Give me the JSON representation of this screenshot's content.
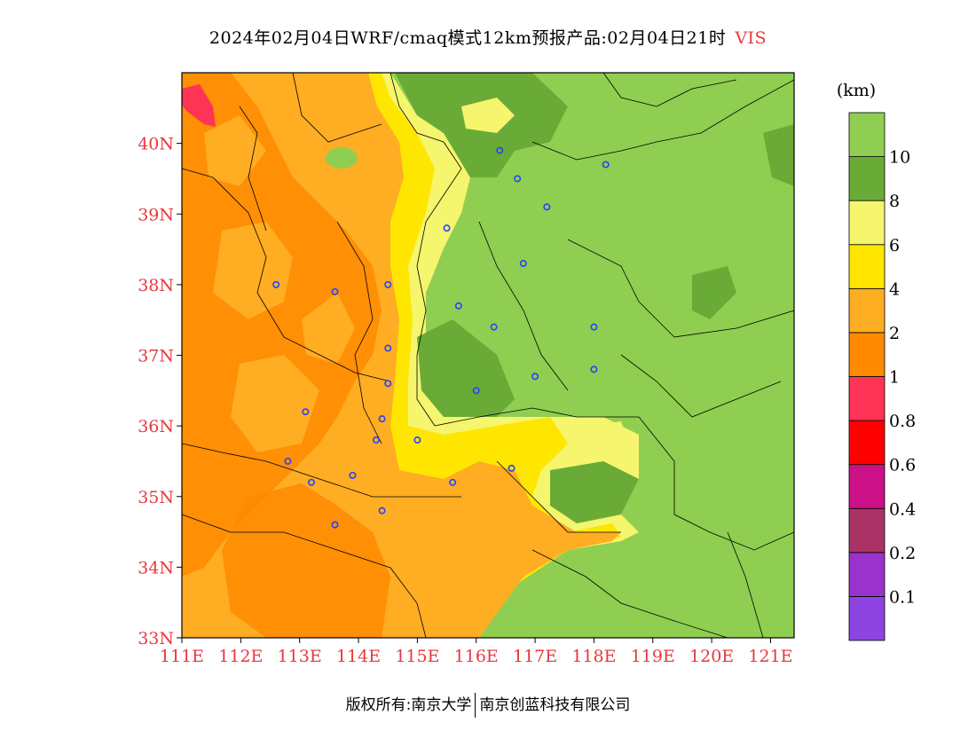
{
  "title": {
    "main": "2024年02月04日WRF/cmaq模式12km预报产品:02月04日21时",
    "variable": "VIS"
  },
  "map": {
    "lat_labels": [
      "40N",
      "39N",
      "38N",
      "37N",
      "36N",
      "35N",
      "34N",
      "33N"
    ],
    "lon_labels": [
      "111E",
      "112E",
      "113E",
      "114E",
      "115E",
      "116E",
      "117E",
      "118E",
      "119E",
      "120E",
      "121E"
    ],
    "extent": {
      "lon_min": 111,
      "lon_max": 121.4,
      "lat_min": 33,
      "lat_max": 41
    },
    "stations": [
      [
        116.4,
        39.9
      ],
      [
        116.7,
        39.5
      ],
      [
        118.2,
        39.7
      ],
      [
        117.2,
        39.1
      ],
      [
        115.5,
        38.8
      ],
      [
        116.8,
        38.3
      ],
      [
        112.6,
        38.0
      ],
      [
        113.6,
        37.9
      ],
      [
        114.5,
        38.0
      ],
      [
        115.7,
        37.7
      ],
      [
        116.3,
        37.4
      ],
      [
        118.0,
        37.4
      ],
      [
        114.5,
        37.1
      ],
      [
        114.5,
        36.6
      ],
      [
        116.0,
        36.5
      ],
      [
        117.0,
        36.7
      ],
      [
        118.0,
        36.8
      ],
      [
        113.1,
        36.2
      ],
      [
        114.4,
        36.1
      ],
      [
        114.3,
        35.8
      ],
      [
        115.0,
        35.8
      ],
      [
        112.8,
        35.5
      ],
      [
        113.2,
        35.2
      ],
      [
        113.9,
        35.3
      ],
      [
        115.6,
        35.2
      ],
      [
        116.6,
        35.4
      ],
      [
        114.4,
        34.8
      ],
      [
        113.6,
        34.6
      ]
    ]
  },
  "colorbar": {
    "unit": "(km)",
    "colors": [
      "#8e44e0",
      "#9933cc",
      "#aa3366",
      "#cc1188",
      "#ff0000",
      "#ff3355",
      "#ff8a00",
      "#ffad22",
      "#ffe600",
      "#f5f56e",
      "#6aab37",
      "#8fce50"
    ],
    "labels": [
      "0.1",
      "0.2",
      "0.4",
      "0.6",
      "0.8",
      "1",
      "2",
      "4",
      "6",
      "8",
      "10"
    ]
  },
  "footer": {
    "left": "版权所有:南京大学",
    "right": "南京创蓝科技有限公司"
  }
}
